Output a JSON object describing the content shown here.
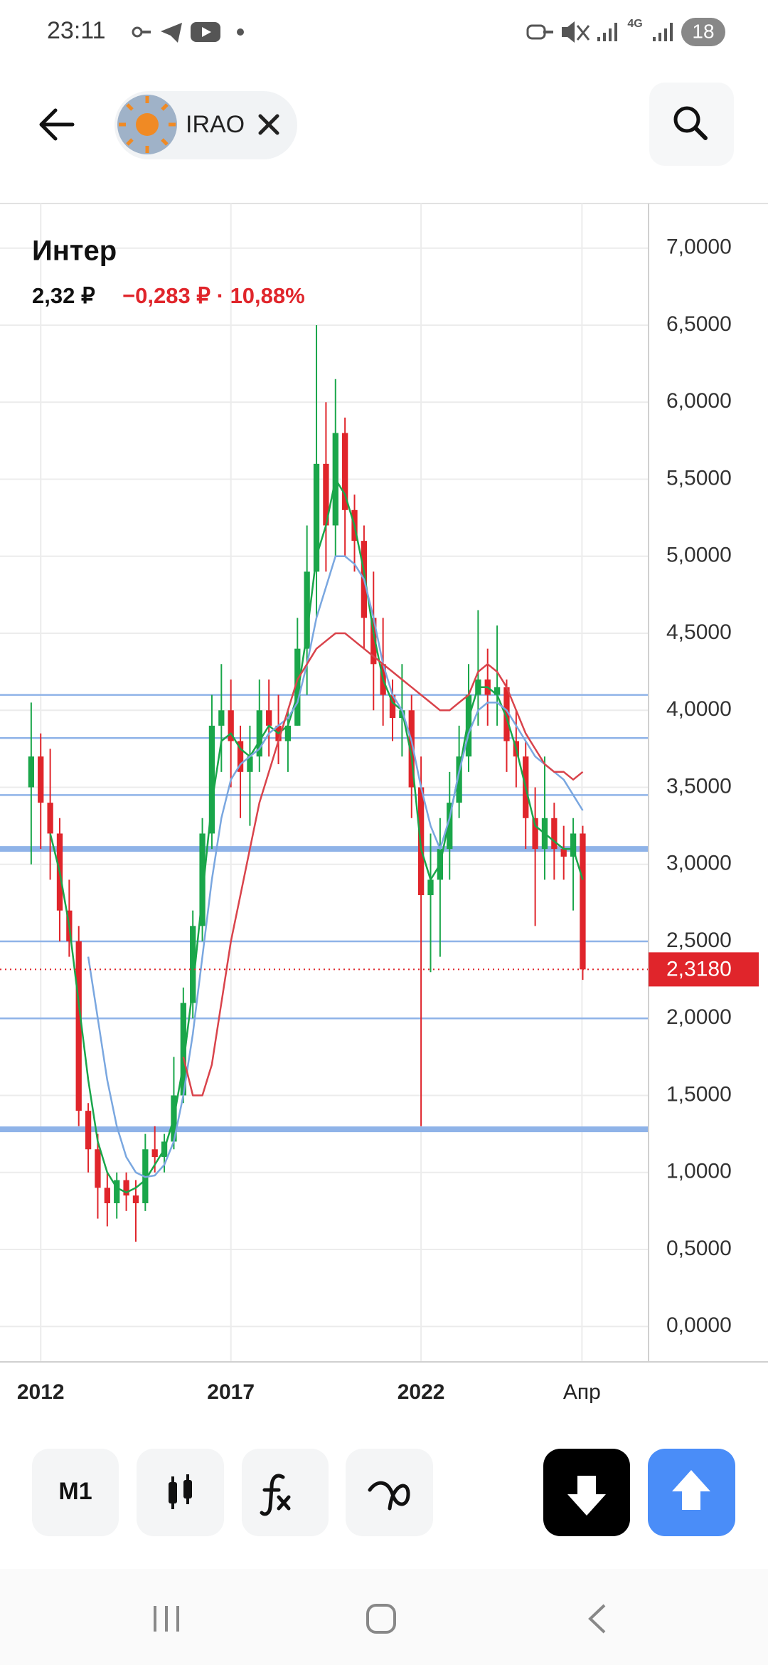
{
  "status": {
    "time": "23:11",
    "network": "4G",
    "battery": "18"
  },
  "header": {
    "ticker": "IRAO"
  },
  "chart_data": {
    "type": "candlestick",
    "title": "Интер",
    "price": "2,32 ₽",
    "change": "−0,283 ₽ · 10,88%",
    "up_color": "#1aa64a",
    "down_color": "#e0252b",
    "grid": true,
    "xlim": [
      2010.93,
      2027.98
    ],
    "xticks": [
      2012,
      2017,
      2022,
      {
        "value": 2026.23,
        "label": "Апр"
      }
    ],
    "ylim": [
      -0.23,
      7.29
    ],
    "yticks": [
      {
        "value": 0,
        "label": "0,0000"
      },
      {
        "value": 0.5,
        "label": "0,5000"
      },
      {
        "value": 1,
        "label": "1,0000"
      },
      {
        "value": 1.5,
        "label": "1,5000"
      },
      {
        "value": 2,
        "label": "2,0000"
      },
      {
        "value": 2.5,
        "label": "2,5000"
      },
      {
        "value": 3,
        "label": "3,0000"
      },
      {
        "value": 3.5,
        "label": "3,5000"
      },
      {
        "value": 4,
        "label": "4,0000"
      },
      {
        "value": 4.5,
        "label": "4,5000"
      },
      {
        "value": 5,
        "label": "5,0000"
      },
      {
        "value": 5.5,
        "label": "5,5000"
      },
      {
        "value": 6,
        "label": "6,0000"
      },
      {
        "value": 6.5,
        "label": "6,5000"
      },
      {
        "value": 7,
        "label": "7,0000"
      }
    ],
    "x": [
      2011.75,
      2012,
      2012.25,
      2012.5,
      2012.75,
      2013,
      2013.25,
      2013.5,
      2013.75,
      2014,
      2014.25,
      2014.5,
      2014.75,
      2015,
      2015.25,
      2015.5,
      2015.75,
      2016,
      2016.25,
      2016.5,
      2016.75,
      2017,
      2017.25,
      2017.5,
      2017.75,
      2018,
      2018.25,
      2018.5,
      2018.75,
      2019,
      2019.25,
      2019.5,
      2019.75,
      2020,
      2020.25,
      2020.5,
      2020.75,
      2021,
      2021.25,
      2021.5,
      2021.75,
      2022,
      2022.25,
      2022.5,
      2022.75,
      2023,
      2023.25,
      2023.5,
      2023.75,
      2024,
      2024.25,
      2024.5,
      2024.75,
      2025,
      2025.25,
      2025.5,
      2025.75,
      2026,
      2026.25
    ],
    "open": [
      3.5,
      3.7,
      3.4,
      3.2,
      2.7,
      2.5,
      1.4,
      1.15,
      0.9,
      0.8,
      0.95,
      0.85,
      0.8,
      1.15,
      1.1,
      1.2,
      1.5,
      2.1,
      2.6,
      3.2,
      3.9,
      4.0,
      3.8,
      3.6,
      3.7,
      4.0,
      3.9,
      3.8,
      3.9,
      4.4,
      4.9,
      5.6,
      5.2,
      5.8,
      5.3,
      5.1,
      4.6,
      4.3,
      4.1,
      3.95,
      4.0,
      3.5,
      2.8,
      2.9,
      3.1,
      3.4,
      3.7,
      4.1,
      4.2,
      4.1,
      4.15,
      3.8,
      3.7,
      3.3,
      3.1,
      3.3,
      3.1,
      3.05,
      3.2
    ],
    "high": [
      4.05,
      3.85,
      3.75,
      3.3,
      2.9,
      2.6,
      1.45,
      1.25,
      1.0,
      1.0,
      1.0,
      0.95,
      1.25,
      1.3,
      1.25,
      1.75,
      2.2,
      2.7,
      3.3,
      4.1,
      4.3,
      4.2,
      3.9,
      3.9,
      4.2,
      4.2,
      4.1,
      4.0,
      4.6,
      5.2,
      6.5,
      6.0,
      6.15,
      5.9,
      5.4,
      5.2,
      4.9,
      4.6,
      4.2,
      4.3,
      4.1,
      3.7,
      3.2,
      3.3,
      3.6,
      3.9,
      4.3,
      4.65,
      4.4,
      4.55,
      4.2,
      4.0,
      3.8,
      3.5,
      3.7,
      3.4,
      3.25,
      3.3,
      3.25
    ],
    "low": [
      3.0,
      3.1,
      2.9,
      2.5,
      2.4,
      1.3,
      1.0,
      0.7,
      0.65,
      0.7,
      0.75,
      0.55,
      0.75,
      1.0,
      1.0,
      1.15,
      1.45,
      2.0,
      2.5,
      3.1,
      3.6,
      3.5,
      3.3,
      3.25,
      3.6,
      3.7,
      3.65,
      3.6,
      3.9,
      4.1,
      4.6,
      4.9,
      5.0,
      5.0,
      4.9,
      4.4,
      4.0,
      3.9,
      3.8,
      3.7,
      3.3,
      1.3,
      2.3,
      2.4,
      2.9,
      3.3,
      3.6,
      3.9,
      3.9,
      3.9,
      3.6,
      3.5,
      3.1,
      2.6,
      2.9,
      2.9,
      2.9,
      2.7,
      2.25
    ],
    "close": [
      3.7,
      3.4,
      3.2,
      2.7,
      2.5,
      1.4,
      1.15,
      0.9,
      0.8,
      0.95,
      0.85,
      0.8,
      1.15,
      1.1,
      1.2,
      1.5,
      2.1,
      2.6,
      3.2,
      3.9,
      4.0,
      3.8,
      3.6,
      3.7,
      4.0,
      3.9,
      3.8,
      3.9,
      4.4,
      4.9,
      5.6,
      5.2,
      5.8,
      5.3,
      5.1,
      4.6,
      4.3,
      4.1,
      3.95,
      4.0,
      3.5,
      2.8,
      2.9,
      3.1,
      3.4,
      3.7,
      4.1,
      4.2,
      4.1,
      4.15,
      3.8,
      3.7,
      3.3,
      3.1,
      3.3,
      3.1,
      3.05,
      3.2,
      2.318
    ],
    "series": [
      {
        "color": "#1aa64a",
        "values": [
          null,
          null,
          3.2,
          2.95,
          2.6,
          2.1,
          1.6,
          1.2,
          1.0,
          0.9,
          0.87,
          0.9,
          0.95,
          1.05,
          1.15,
          1.35,
          1.7,
          2.2,
          2.8,
          3.4,
          3.8,
          3.85,
          3.75,
          3.7,
          3.8,
          3.9,
          3.85,
          3.9,
          4.1,
          4.5,
          5.0,
          5.2,
          5.5,
          5.4,
          5.2,
          4.9,
          4.5,
          4.2,
          4.05,
          4.0,
          3.7,
          3.1,
          2.9,
          3.0,
          3.3,
          3.6,
          3.95,
          4.15,
          4.15,
          4.1,
          3.95,
          3.75,
          3.5,
          3.25,
          3.2,
          3.15,
          3.1,
          3.1,
          2.9
        ]
      },
      {
        "color": "#7aa7e0",
        "values": [
          null,
          null,
          null,
          null,
          null,
          null,
          2.4,
          2.0,
          1.6,
          1.3,
          1.1,
          1.0,
          0.97,
          0.98,
          1.05,
          1.2,
          1.5,
          1.9,
          2.4,
          2.9,
          3.3,
          3.55,
          3.65,
          3.7,
          3.75,
          3.85,
          3.9,
          3.95,
          4.05,
          4.3,
          4.6,
          4.8,
          5.0,
          5.0,
          4.95,
          4.85,
          4.6,
          4.3,
          4.1,
          4.0,
          3.8,
          3.5,
          3.25,
          3.1,
          3.3,
          3.6,
          3.85,
          4.0,
          4.05,
          4.05,
          4.0,
          3.9,
          3.8,
          3.7,
          3.65,
          3.6,
          3.55,
          3.45,
          3.35
        ]
      },
      {
        "color": "#d9434b",
        "values": [
          null,
          null,
          null,
          null,
          null,
          null,
          null,
          null,
          null,
          null,
          null,
          null,
          null,
          null,
          null,
          null,
          1.75,
          1.5,
          1.5,
          1.7,
          2.1,
          2.5,
          2.8,
          3.1,
          3.4,
          3.6,
          3.8,
          4.0,
          4.2,
          4.3,
          4.4,
          4.45,
          4.5,
          4.5,
          4.45,
          4.4,
          4.35,
          4.3,
          4.25,
          4.2,
          4.15,
          4.1,
          4.05,
          4.0,
          4.0,
          4.05,
          4.1,
          4.25,
          4.3,
          4.25,
          4.15,
          4.0,
          3.85,
          3.75,
          3.65,
          3.6,
          3.6,
          3.55,
          3.6
        ]
      }
    ],
    "level_color": "#8fb3e8",
    "levels": [
      {
        "value": 4.1,
        "thick": false
      },
      {
        "value": 3.82,
        "thick": false
      },
      {
        "value": 3.45,
        "thick": false
      },
      {
        "value": 3.1,
        "thick": true
      },
      {
        "value": 2.5,
        "thick": false
      },
      {
        "value": 2.0,
        "thick": false
      },
      {
        "value": 1.28,
        "thick": true
      }
    ],
    "last_price": {
      "value": 2.318,
      "label": "2,3180"
    }
  },
  "toolbar": {
    "period": "M1"
  }
}
